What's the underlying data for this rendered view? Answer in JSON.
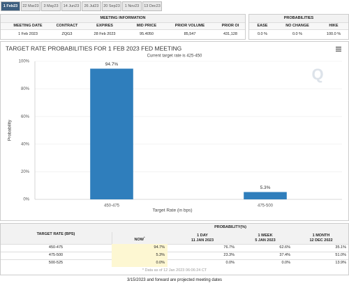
{
  "tabs": [
    "1 Feb23",
    "22 Mar23",
    "3 May23",
    "14 Jun23",
    "26 Jul23",
    "20 Sep23",
    "1 Nov23",
    "13 Dec23"
  ],
  "meeting_info": {
    "title": "MEETING INFORMATION",
    "headers": [
      "MEETING DATE",
      "CONTRACT",
      "EXPIRES",
      "MID PRICE",
      "PRIOR VOLUME",
      "PRIOR OI"
    ],
    "values": [
      "1 Feb 2023",
      "ZQG3",
      "28 Feb 2023",
      "95.4050",
      "85,547",
      "431,128"
    ]
  },
  "probabilities": {
    "title": "PROBABILITIES",
    "headers": [
      "EASE",
      "NO CHANGE",
      "HIKE"
    ],
    "values": [
      "0.0 %",
      "0.0 %",
      "100.0 %"
    ]
  },
  "chart_data": {
    "type": "bar",
    "title": "TARGET RATE PROBABILITIES FOR 1 FEB 2023 FED MEETING",
    "subtitle": "Current target rate is 425-450",
    "x_label": "Target Rate (in bps)",
    "y_label": "Probability",
    "categories": [
      "450-475",
      "475-500"
    ],
    "values": [
      94.7,
      5.3
    ],
    "value_labels": [
      "94.7%",
      "5.3%"
    ],
    "color": "#2f7ebc",
    "ylim": [
      0,
      100
    ],
    "yticks": [
      {
        "value": 0,
        "label": "0%"
      },
      {
        "value": 20,
        "label": "20%"
      },
      {
        "value": 40,
        "label": "40%"
      },
      {
        "value": 60,
        "label": "60%"
      },
      {
        "value": 80,
        "label": "80%"
      },
      {
        "value": 100,
        "label": "100%"
      }
    ],
    "grid": true
  },
  "history_table": {
    "target_header": "TARGET RATE (BPS)",
    "probability_header": "PROBABILITY(%)",
    "columns": [
      {
        "title": "NOW",
        "marker": "*"
      },
      {
        "title": "1 DAY",
        "date": "11 JAN 2023"
      },
      {
        "title": "1 WEEK",
        "date": "5 JAN 2023"
      },
      {
        "title": "1 MONTH",
        "date": "12 DEC 2022"
      }
    ],
    "rows": [
      [
        "450-475",
        "94.7%",
        "76.7%",
        "62.6%",
        "35.1%"
      ],
      [
        "475-500",
        "5.3%",
        "23.3%",
        "37.4%",
        "51.0%"
      ],
      [
        "500-525",
        "0.0%",
        "0.0%",
        "0.0%",
        "13.9%"
      ]
    ],
    "footnote": "* Data as of 12 Jan 2023 06:06:24 CT"
  },
  "footer": "3/15/2023 and forward are projected meeting dates"
}
